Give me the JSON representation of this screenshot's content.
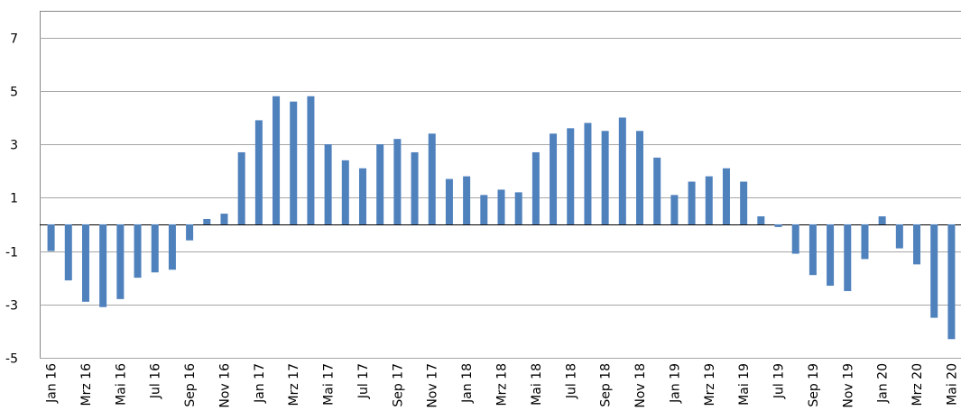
{
  "chart_data": {
    "type": "bar",
    "categories": [
      "Jan 16",
      null,
      "Mrz 16",
      null,
      "Mai 16",
      null,
      "Jul 16",
      null,
      "Sep 16",
      null,
      "Nov 16",
      null,
      "Jan 17",
      null,
      "Mrz 17",
      null,
      "Mai 17",
      null,
      "Jul 17",
      null,
      "Sep 17",
      null,
      "Nov 17",
      null,
      "Jan 18",
      null,
      "Mrz 18",
      null,
      "Mai 18",
      null,
      "Jul 18",
      null,
      "Sep 18",
      null,
      "Nov 18",
      null,
      "Jan 19",
      null,
      "Mrz 19",
      null,
      "Mai 19",
      null,
      "Jul 19",
      null,
      "Sep 19",
      null,
      "Nov 19",
      null,
      "Jan 20",
      null,
      "Mrz 20",
      null,
      "Mai 20"
    ],
    "values": [
      -1.0,
      -2.1,
      -2.9,
      -3.1,
      -2.8,
      -2.0,
      -1.8,
      -1.7,
      -0.6,
      0.2,
      0.4,
      2.7,
      3.9,
      4.8,
      4.6,
      4.8,
      3.0,
      2.4,
      2.1,
      3.0,
      3.2,
      2.7,
      3.4,
      1.7,
      1.8,
      1.1,
      1.3,
      1.2,
      2.7,
      3.4,
      3.6,
      3.8,
      3.5,
      4.0,
      3.5,
      2.5,
      1.1,
      1.6,
      1.8,
      2.1,
      1.6,
      0.3,
      -0.1,
      -1.1,
      -1.9,
      -2.3,
      -2.5,
      -1.3,
      0.3,
      -0.9,
      -1.5,
      -3.5,
      -4.3
    ],
    "color": "#4f81bd",
    "ylim": [
      -5,
      8
    ],
    "yticks": [
      -5,
      -3,
      -1,
      1,
      3,
      5,
      7
    ],
    "grid": true
  }
}
